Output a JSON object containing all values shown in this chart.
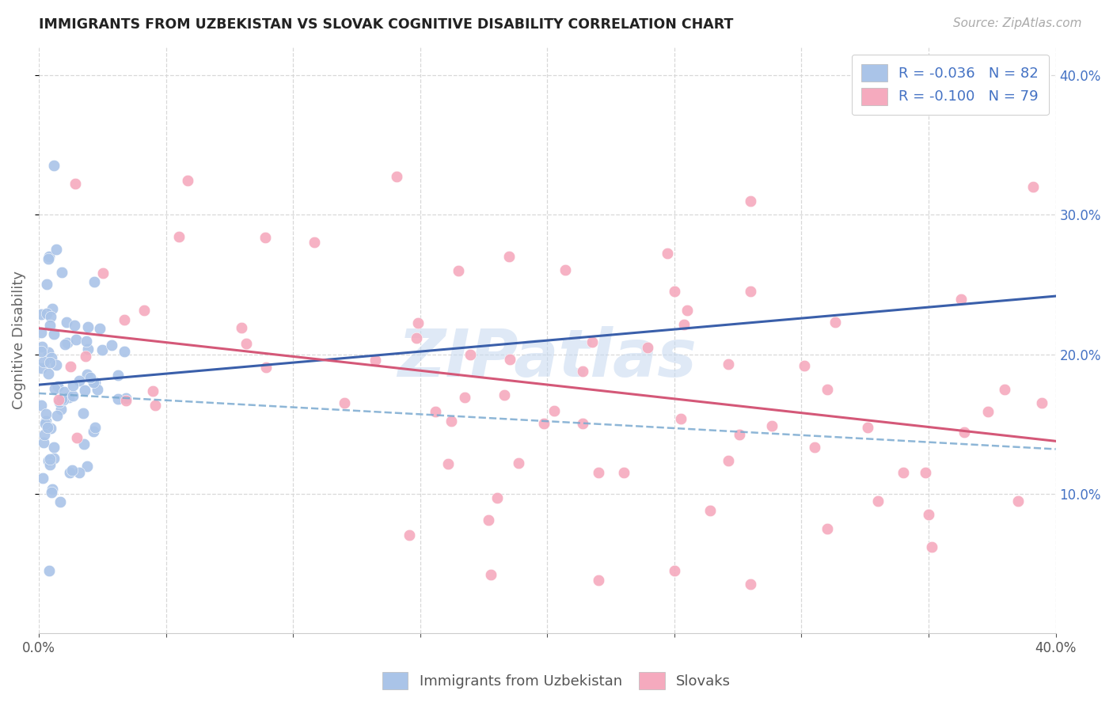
{
  "title": "IMMIGRANTS FROM UZBEKISTAN VS SLOVAK COGNITIVE DISABILITY CORRELATION CHART",
  "source": "Source: ZipAtlas.com",
  "ylabel": "Cognitive Disability",
  "series1_label": "Immigrants from Uzbekistan",
  "series1_R": "-0.036",
  "series1_N": "82",
  "series1_color": "#aac4e8",
  "series1_line_color": "#3a5faa",
  "series1_dash_color": "#7aaad0",
  "series2_label": "Slovaks",
  "series2_R": "-0.100",
  "series2_N": "79",
  "series2_color": "#f5aabe",
  "series2_line_color": "#d45878",
  "watermark": "ZIPatlas",
  "watermark_color": "#c5d8f0",
  "background_color": "#ffffff",
  "grid_color": "#d8d8d8",
  "right_axis_color": "#4472c4",
  "title_color": "#222222",
  "source_color": "#aaaaaa",
  "xlim": [
    0.0,
    0.4
  ],
  "ylim": [
    0.0,
    0.42
  ],
  "ytick_vals": [
    0.1,
    0.2,
    0.3,
    0.4
  ],
  "xtick_vals": [
    0.0,
    0.05,
    0.1,
    0.15,
    0.2,
    0.25,
    0.3,
    0.35,
    0.4
  ]
}
